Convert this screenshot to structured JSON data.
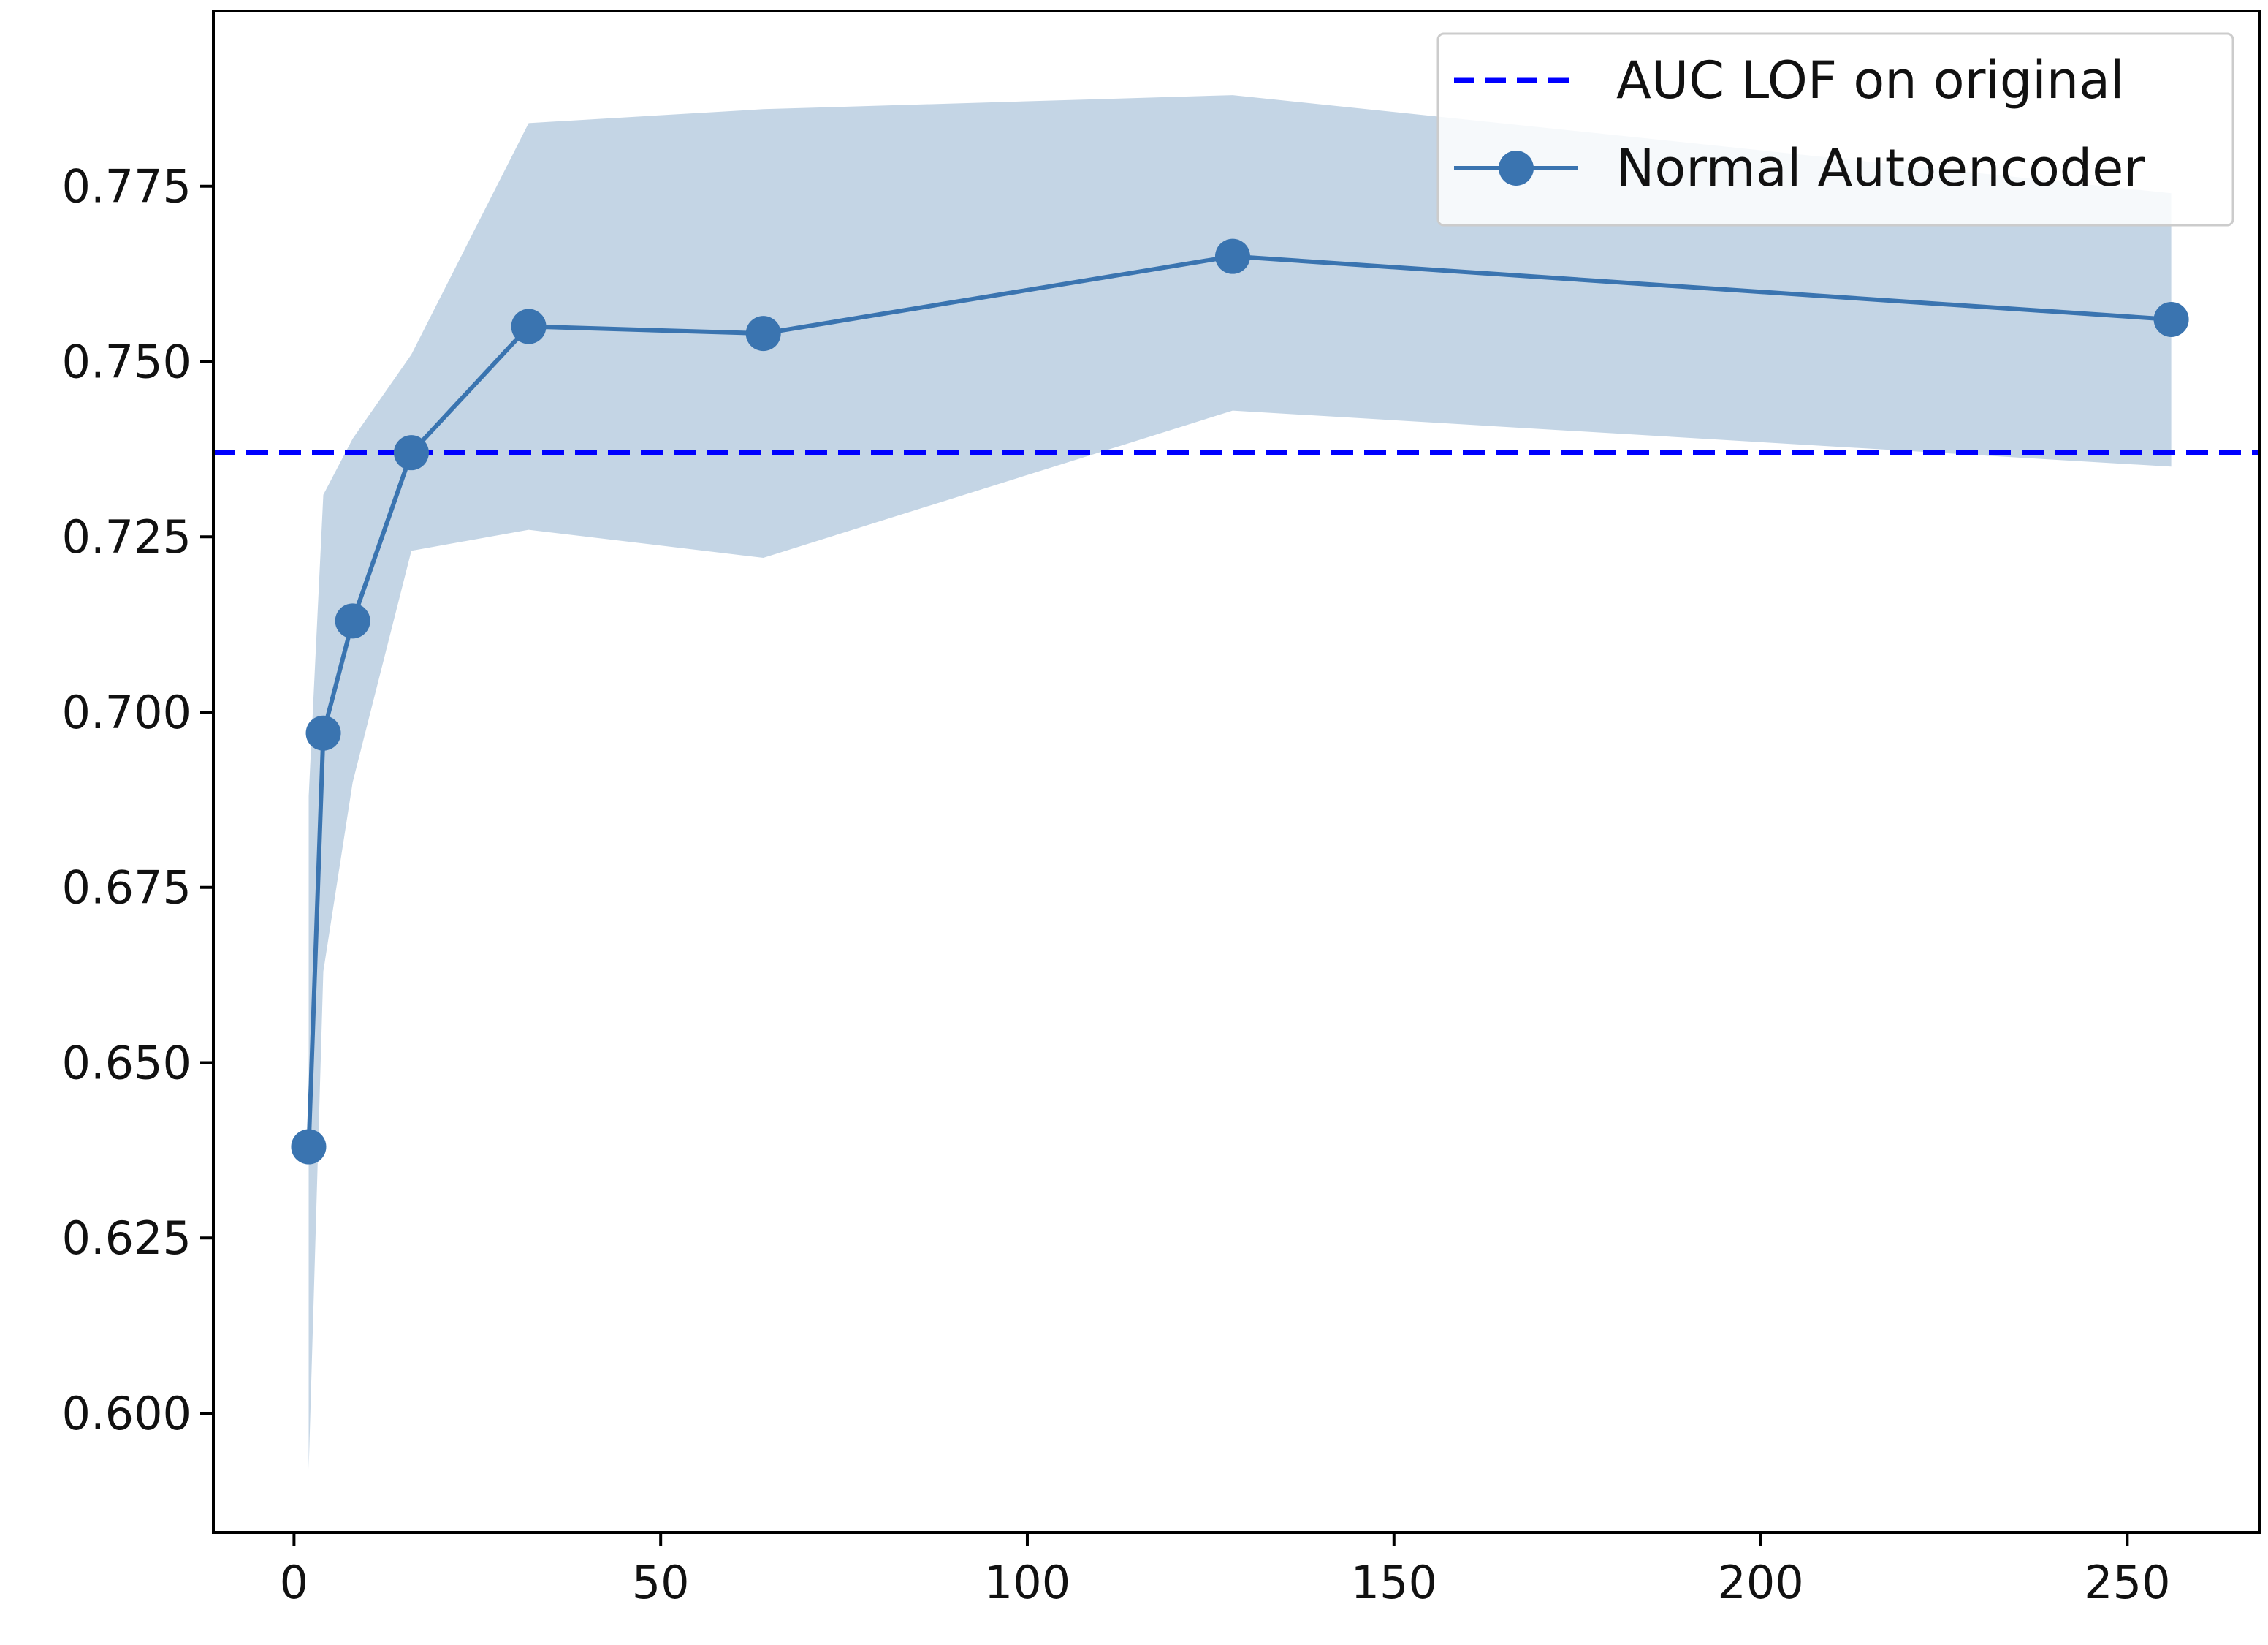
{
  "chart_data": {
    "type": "line",
    "title": "",
    "xlabel": "",
    "ylabel": "",
    "xlim": [
      -11,
      268
    ],
    "ylim": [
      0.583,
      0.8
    ],
    "x_ticks": [
      0,
      50,
      100,
      150,
      200,
      250
    ],
    "x_tick_labels": [
      "0",
      "50",
      "100",
      "150",
      "200",
      "250"
    ],
    "y_ticks": [
      0.6,
      0.625,
      0.65,
      0.675,
      0.7,
      0.725,
      0.75,
      0.775
    ],
    "y_tick_labels": [
      "0.600",
      "0.625",
      "0.650",
      "0.675",
      "0.700",
      "0.725",
      "0.750",
      "0.775"
    ],
    "grid": false,
    "legend_position": "top-right",
    "reference_line": {
      "name": "AUC LOF on original",
      "y": 0.737,
      "style": "dashed",
      "color": "#0000ff"
    },
    "series": [
      {
        "name": "Normal Autoencoder",
        "color": "#3a74b0",
        "band_color": "#c4d5e5",
        "x": [
          2,
          4,
          8,
          16,
          32,
          64,
          128,
          256
        ],
        "values": [
          0.638,
          0.697,
          0.713,
          0.737,
          0.755,
          0.754,
          0.765,
          0.756
        ],
        "lower": [
          0.592,
          0.663,
          0.69,
          0.723,
          0.726,
          0.722,
          0.743,
          0.735
        ],
        "upper": [
          0.688,
          0.731,
          0.739,
          0.751,
          0.784,
          0.786,
          0.788,
          0.774
        ]
      }
    ]
  }
}
